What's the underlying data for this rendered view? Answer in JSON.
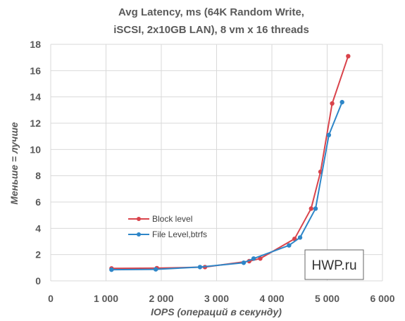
{
  "chart_data": {
    "type": "line",
    "title": [
      "Avg Latency, ms (64K Random Write,",
      "iSCSI, 2x10GB LAN), 8 vm x 16 threads"
    ],
    "xlabel": "IOPS (операций в секунду)",
    "ylabel": "Меньше = лучше",
    "xlim": [
      0,
      6000
    ],
    "ylim": [
      0,
      18
    ],
    "xticks": [
      0,
      1000,
      2000,
      3000,
      4000,
      5000,
      6000
    ],
    "xtick_labels": [
      "0",
      "1 000",
      "2 000",
      "3 000",
      "4 000",
      "5 000",
      "6 000"
    ],
    "yticks": [
      0,
      2,
      4,
      6,
      8,
      10,
      12,
      14,
      16,
      18
    ],
    "ytick_labels": [
      "0",
      "2",
      "4",
      "6",
      "8",
      "10",
      "12",
      "14",
      "16",
      "18"
    ],
    "grid": true,
    "legend_position": "left-middle",
    "series": [
      {
        "name": "Block level",
        "color": "#d9434b",
        "points": [
          [
            1100,
            0.95
          ],
          [
            1920,
            0.97
          ],
          [
            2790,
            1.05
          ],
          [
            3590,
            1.5
          ],
          [
            3790,
            1.7
          ],
          [
            4410,
            3.2
          ],
          [
            4710,
            5.5
          ],
          [
            4880,
            8.3
          ],
          [
            5090,
            13.5
          ],
          [
            5380,
            17.1
          ]
        ]
      },
      {
        "name": "File Level,btrfs",
        "color": "#2e86c8",
        "points": [
          [
            1100,
            0.85
          ],
          [
            1900,
            0.88
          ],
          [
            2700,
            1.05
          ],
          [
            3490,
            1.38
          ],
          [
            3670,
            1.7
          ],
          [
            4310,
            2.7
          ],
          [
            4510,
            3.3
          ],
          [
            4790,
            5.5
          ],
          [
            5030,
            11.1
          ],
          [
            5270,
            13.6
          ]
        ]
      }
    ]
  },
  "watermark": "HWP.ru"
}
